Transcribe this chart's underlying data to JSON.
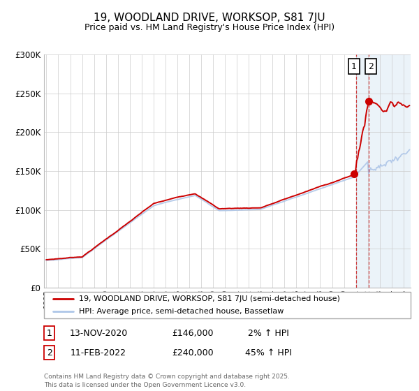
{
  "title": "19, WOODLAND DRIVE, WORKSOP, S81 7JU",
  "subtitle": "Price paid vs. HM Land Registry's House Price Index (HPI)",
  "legend_line1": "19, WOODLAND DRIVE, WORKSOP, S81 7JU (semi-detached house)",
  "legend_line2": "HPI: Average price, semi-detached house, Bassetlaw",
  "annotation1_date": "13-NOV-2020",
  "annotation1_price": 146000,
  "annotation1_price_str": "£146,000",
  "annotation1_hpi": "2% ↑ HPI",
  "annotation2_date": "11-FEB-2022",
  "annotation2_price": 240000,
  "annotation2_price_str": "£240,000",
  "annotation2_hpi": "45% ↑ HPI",
  "vline1_year": 2021.0,
  "vline2_year": 2022.1,
  "sale1_year": 2020.87,
  "sale1_price": 146000,
  "sale2_year": 2022.1,
  "sale2_price": 240000,
  "ylim_min": 0,
  "ylim_max": 300000,
  "xlim_start": 1994.8,
  "xlim_end": 2025.6,
  "red_color": "#cc0000",
  "blue_color": "#aec6e8",
  "shade_color": "#d8e8f5",
  "shade_alpha": 0.5,
  "shaded_start": 2021.0,
  "shaded_end": 2025.6,
  "footnote": "Contains HM Land Registry data © Crown copyright and database right 2025.\nThis data is licensed under the Open Government Licence v3.0."
}
